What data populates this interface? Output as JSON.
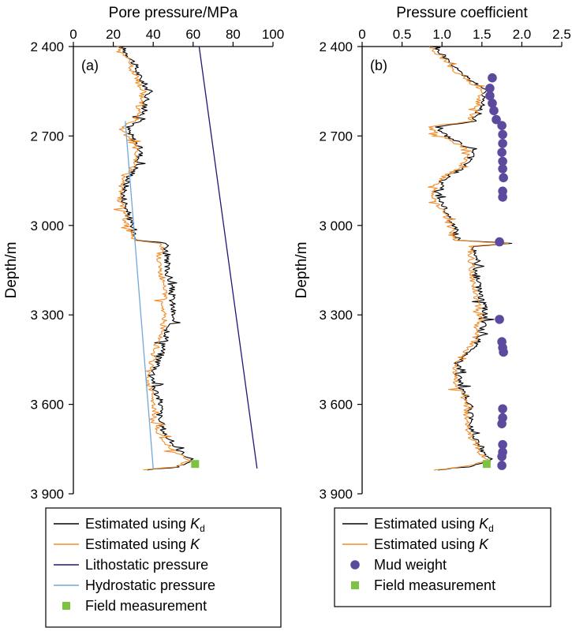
{
  "chart_data": [
    {
      "panel_label": "(a)",
      "type": "line",
      "title": "",
      "xlabel": "Pore pressure/MPa",
      "ylabel": "Depth/m",
      "xlim": [
        0,
        100
      ],
      "ylim": [
        3900,
        2400
      ],
      "x_ticks": [
        "0",
        "20",
        "40",
        "60",
        "80",
        "100"
      ],
      "y_ticks": [
        "2 400",
        "2 700",
        "3 000",
        "3 300",
        "3 600",
        "3 900"
      ],
      "x_tick_values": [
        0,
        20,
        40,
        60,
        80,
        100
      ],
      "y_tick_values": [
        2400,
        2700,
        3000,
        3300,
        3600,
        3900
      ],
      "series": [
        {
          "name": "Estimated using K_d",
          "legend_main": "Estimated using ",
          "legend_sym": "K",
          "legend_sub": "d",
          "color": "#000000",
          "points": [
            [
              24,
              2400
            ],
            [
              30,
              2450
            ],
            [
              33,
              2500
            ],
            [
              38,
              2550
            ],
            [
              36,
              2600
            ],
            [
              34,
              2650
            ],
            [
              27,
              2670
            ],
            [
              29,
              2700
            ],
            [
              34,
              2750
            ],
            [
              32,
              2800
            ],
            [
              27,
              2850
            ],
            [
              25,
              2900
            ],
            [
              27,
              2950
            ],
            [
              29,
              3000
            ],
            [
              33,
              3050
            ],
            [
              47,
              3060
            ],
            [
              46,
              3120
            ],
            [
              49,
              3200
            ],
            [
              50,
              3300
            ],
            [
              46,
              3390
            ],
            [
              43,
              3450
            ],
            [
              40,
              3500
            ],
            [
              41,
              3550
            ],
            [
              44,
              3600
            ],
            [
              43,
              3650
            ],
            [
              46,
              3700
            ],
            [
              52,
              3750
            ],
            [
              60,
              3790
            ],
            [
              52,
              3810
            ],
            [
              37,
              3820
            ]
          ]
        },
        {
          "name": "Estimated using K",
          "legend_main": "Estimated using ",
          "legend_sym": "K",
          "legend_sub": "",
          "color": "#f28c28",
          "points": [
            [
              23,
              2400
            ],
            [
              28,
              2450
            ],
            [
              31,
              2500
            ],
            [
              35,
              2550
            ],
            [
              33,
              2600
            ],
            [
              31,
              2650
            ],
            [
              24,
              2670
            ],
            [
              27,
              2700
            ],
            [
              32,
              2750
            ],
            [
              30,
              2800
            ],
            [
              25,
              2850
            ],
            [
              23,
              2900
            ],
            [
              25,
              2950
            ],
            [
              27,
              3000
            ],
            [
              31,
              3050
            ],
            [
              44,
              3060
            ],
            [
              43,
              3120
            ],
            [
              45,
              3200
            ],
            [
              46,
              3300
            ],
            [
              43,
              3390
            ],
            [
              40,
              3450
            ],
            [
              37,
              3500
            ],
            [
              38,
              3550
            ],
            [
              41,
              3600
            ],
            [
              40,
              3650
            ],
            [
              43,
              3700
            ],
            [
              49,
              3750
            ],
            [
              58,
              3790
            ],
            [
              50,
              3810
            ],
            [
              35,
              3820
            ]
          ]
        },
        {
          "name": "Lithostatic pressure",
          "legend_main": "Lithostatic pressure",
          "color": "#2a1078",
          "points": [
            [
              63,
              2400
            ],
            [
              92,
              3815
            ]
          ]
        },
        {
          "name": "Hydrostatic pressure",
          "legend_main": "Hydrostatic pressure",
          "color": "#6fa8dc",
          "points": [
            [
              26,
              2650
            ],
            [
              40,
              3815
            ]
          ]
        }
      ],
      "markers": [
        {
          "name": "Field measurement",
          "legend_main": "Field measurement",
          "shape": "square",
          "color": "#7dc242",
          "points": [
            [
              61,
              3800
            ]
          ]
        }
      ]
    },
    {
      "panel_label": "(b)",
      "type": "line",
      "title": "",
      "xlabel": "Pressure coefficient",
      "ylabel": "Depth/m",
      "xlim": [
        0,
        2.5
      ],
      "ylim": [
        3900,
        2400
      ],
      "x_ticks": [
        "0",
        "0.5",
        "1.0",
        "1.5",
        "2.0",
        "2.5"
      ],
      "y_ticks": [
        "2 400",
        "2 700",
        "3 000",
        "3 300",
        "3 600",
        "3 900"
      ],
      "x_tick_values": [
        0,
        0.5,
        1.0,
        1.5,
        2.0,
        2.5
      ],
      "y_tick_values": [
        2400,
        2700,
        3000,
        3300,
        3600,
        3900
      ],
      "series": [
        {
          "name": "Estimated using K_d",
          "legend_main": "Estimated using ",
          "legend_sym": "K",
          "legend_sub": "d",
          "color": "#000000",
          "points": [
            [
              0.9,
              2400
            ],
            [
              1.1,
              2450
            ],
            [
              1.3,
              2500
            ],
            [
              1.55,
              2550
            ],
            [
              1.5,
              2600
            ],
            [
              1.4,
              2650
            ],
            [
              0.95,
              2670
            ],
            [
              1.05,
              2700
            ],
            [
              1.4,
              2750
            ],
            [
              1.3,
              2800
            ],
            [
              1.0,
              2850
            ],
            [
              0.95,
              2900
            ],
            [
              1.05,
              2950
            ],
            [
              1.15,
              3000
            ],
            [
              1.2,
              3050
            ],
            [
              1.85,
              3060
            ],
            [
              1.4,
              3070
            ],
            [
              1.45,
              3200
            ],
            [
              1.55,
              3300
            ],
            [
              1.45,
              3390
            ],
            [
              1.25,
              3450
            ],
            [
              1.2,
              3500
            ],
            [
              1.25,
              3550
            ],
            [
              1.35,
              3600
            ],
            [
              1.35,
              3650
            ],
            [
              1.4,
              3700
            ],
            [
              1.5,
              3750
            ],
            [
              1.62,
              3790
            ],
            [
              1.3,
              3810
            ],
            [
              0.95,
              3820
            ]
          ]
        },
        {
          "name": "Estimated using K",
          "legend_main": "Estimated using ",
          "legend_sym": "K",
          "legend_sub": "",
          "color": "#f28c28",
          "points": [
            [
              0.85,
              2400
            ],
            [
              1.05,
              2450
            ],
            [
              1.25,
              2500
            ],
            [
              1.5,
              2550
            ],
            [
              1.45,
              2600
            ],
            [
              1.35,
              2650
            ],
            [
              0.85,
              2670
            ],
            [
              1.0,
              2700
            ],
            [
              1.35,
              2750
            ],
            [
              1.25,
              2800
            ],
            [
              0.95,
              2850
            ],
            [
              0.9,
              2900
            ],
            [
              1.0,
              2950
            ],
            [
              1.1,
              3000
            ],
            [
              1.15,
              3050
            ],
            [
              1.8,
              3060
            ],
            [
              1.35,
              3070
            ],
            [
              1.4,
              3200
            ],
            [
              1.48,
              3300
            ],
            [
              1.4,
              3390
            ],
            [
              1.2,
              3450
            ],
            [
              1.15,
              3500
            ],
            [
              1.2,
              3550
            ],
            [
              1.3,
              3600
            ],
            [
              1.3,
              3650
            ],
            [
              1.35,
              3700
            ],
            [
              1.45,
              3750
            ],
            [
              1.58,
              3790
            ],
            [
              1.25,
              3810
            ],
            [
              0.9,
              3820
            ]
          ]
        }
      ],
      "markers": [
        {
          "name": "Mud weight",
          "legend_main": "Mud weight",
          "shape": "circle",
          "color": "#5b4a9e",
          "points": [
            [
              1.63,
              2505
            ],
            [
              1.6,
              2540
            ],
            [
              1.6,
              2565
            ],
            [
              1.63,
              2590
            ],
            [
              1.65,
              2615
            ],
            [
              1.68,
              2645
            ],
            [
              1.75,
              2665
            ],
            [
              1.76,
              2695
            ],
            [
              1.76,
              2725
            ],
            [
              1.75,
              2755
            ],
            [
              1.76,
              2785
            ],
            [
              1.76,
              2810
            ],
            [
              1.77,
              2840
            ],
            [
              1.76,
              2885
            ],
            [
              1.76,
              2905
            ],
            [
              1.72,
              3055
            ],
            [
              1.72,
              3315
            ],
            [
              1.75,
              3390
            ],
            [
              1.76,
              3410
            ],
            [
              1.77,
              3425
            ],
            [
              1.76,
              3615
            ],
            [
              1.76,
              3645
            ],
            [
              1.75,
              3665
            ],
            [
              1.76,
              3735
            ],
            [
              1.76,
              3760
            ],
            [
              1.75,
              3775
            ],
            [
              1.75,
              3805
            ]
          ]
        },
        {
          "name": "Field measurement",
          "legend_main": "Field measurement",
          "shape": "square",
          "color": "#7dc242",
          "points": [
            [
              1.56,
              3800
            ]
          ]
        }
      ]
    }
  ]
}
